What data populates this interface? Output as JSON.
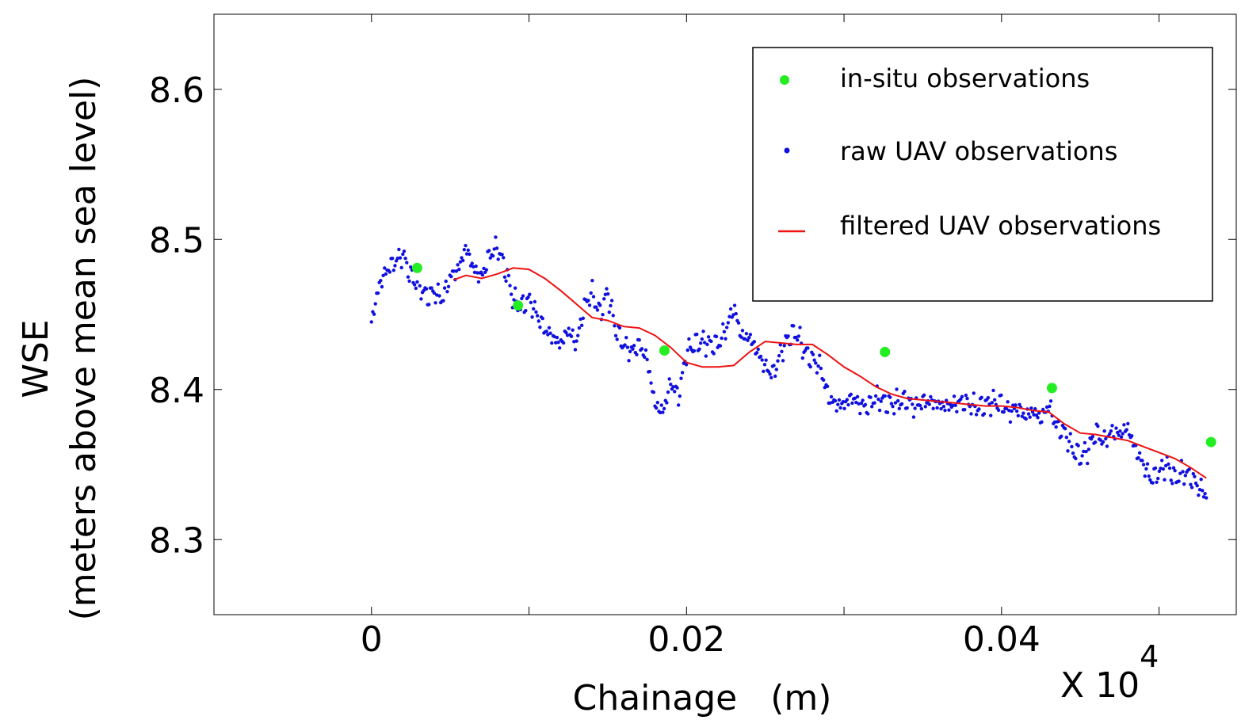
{
  "chart_data": {
    "type": "scatter",
    "title": "",
    "xlabel": "Chainage   (m)",
    "ylabel": "WSE",
    "ylabel_sub": "(meters above mean sea level)",
    "x_multiplier_label": "X 10",
    "x_multiplier_exponent": "4",
    "xlim": [
      -0.01,
      0.0549
    ],
    "ylim": [
      8.25,
      8.65
    ],
    "x_ticks": [
      0,
      0.01,
      0.02,
      0.03,
      0.04,
      0.05
    ],
    "x_tick_labels": [
      {
        "value": 0,
        "label": "0"
      },
      {
        "value": 0.02,
        "label": "0.02"
      },
      {
        "value": 0.04,
        "label": "0.04"
      }
    ],
    "y_ticks": [
      8.3,
      8.4,
      8.5,
      8.6
    ],
    "y_tick_labels": [
      {
        "value": 8.3,
        "label": "8.3"
      },
      {
        "value": 8.4,
        "label": "8.4"
      },
      {
        "value": 8.5,
        "label": "8.5"
      },
      {
        "value": 8.6,
        "label": "8.6"
      }
    ],
    "grid": false,
    "legend_position": "top-right",
    "series": [
      {
        "name": "in-situ observations",
        "kind": "points",
        "color": "#22ee22",
        "x": [
          0.0029,
          0.0093,
          0.0186,
          0.0326,
          0.0432,
          0.0533
        ],
        "y": [
          8.481,
          8.456,
          8.426,
          8.425,
          8.401,
          8.365
        ]
      },
      {
        "name": "raw UAV observations",
        "kind": "points",
        "color": "#1010e0",
        "anchors_x": [
          0,
          0.0005,
          0.001,
          0.0015,
          0.002,
          0.0025,
          0.003,
          0.0035,
          0.004,
          0.0045,
          0.005,
          0.0055,
          0.006,
          0.0065,
          0.007,
          0.0075,
          0.008,
          0.0085,
          0.009,
          0.0095,
          0.01,
          0.0105,
          0.011,
          0.0115,
          0.012,
          0.0125,
          0.013,
          0.0135,
          0.014,
          0.0145,
          0.015,
          0.0155,
          0.016,
          0.0165,
          0.017,
          0.0175,
          0.018,
          0.0185,
          0.019,
          0.0195,
          0.02,
          0.0205,
          0.021,
          0.0215,
          0.022,
          0.0225,
          0.023,
          0.0235,
          0.024,
          0.0245,
          0.025,
          0.0255,
          0.026,
          0.0265,
          0.027,
          0.0275,
          0.028,
          0.0285,
          0.029,
          0.0295,
          0.03,
          0.0305,
          0.031,
          0.0315,
          0.032,
          0.0325,
          0.033,
          0.0335,
          0.034,
          0.0345,
          0.035,
          0.0355,
          0.036,
          0.0365,
          0.037,
          0.0375,
          0.038,
          0.0385,
          0.039,
          0.0395,
          0.04,
          0.0405,
          0.041,
          0.0415,
          0.042,
          0.0425,
          0.043,
          0.0435,
          0.044,
          0.0445,
          0.045,
          0.0455,
          0.046,
          0.0465,
          0.047,
          0.0475,
          0.048,
          0.0485,
          0.049,
          0.0495,
          0.05,
          0.0505,
          0.051,
          0.0515,
          0.052,
          0.0525,
          0.053
        ],
        "anchors_y": [
          8.445,
          8.47,
          8.48,
          8.485,
          8.49,
          8.475,
          8.47,
          8.462,
          8.465,
          8.46,
          8.475,
          8.48,
          8.495,
          8.48,
          8.475,
          8.49,
          8.495,
          8.48,
          8.46,
          8.455,
          8.46,
          8.45,
          8.44,
          8.435,
          8.43,
          8.44,
          8.43,
          8.455,
          8.465,
          8.45,
          8.465,
          8.44,
          8.43,
          8.425,
          8.43,
          8.42,
          8.39,
          8.385,
          8.405,
          8.395,
          8.425,
          8.43,
          8.432,
          8.43,
          8.43,
          8.44,
          8.455,
          8.435,
          8.435,
          8.425,
          8.415,
          8.41,
          8.425,
          8.435,
          8.438,
          8.425,
          8.42,
          8.415,
          8.395,
          8.39,
          8.39,
          8.395,
          8.39,
          8.388,
          8.395,
          8.392,
          8.39,
          8.392,
          8.393,
          8.388,
          8.392,
          8.392,
          8.39,
          8.389,
          8.39,
          8.392,
          8.39,
          8.388,
          8.39,
          8.392,
          8.39,
          8.385,
          8.388,
          8.382,
          8.386,
          8.38,
          8.39,
          8.375,
          8.372,
          8.36,
          8.355,
          8.36,
          8.372,
          8.365,
          8.372,
          8.37,
          8.375,
          8.36,
          8.35,
          8.34,
          8.345,
          8.35,
          8.34,
          8.345,
          8.342,
          8.335,
          8.33
        ],
        "count": 640
      },
      {
        "name": "filtered UAV observations",
        "kind": "line",
        "color": "#ee1111",
        "x": [
          0.0052,
          0.006,
          0.007,
          0.008,
          0.009,
          0.01,
          0.011,
          0.012,
          0.013,
          0.014,
          0.015,
          0.016,
          0.017,
          0.018,
          0.019,
          0.02,
          0.021,
          0.022,
          0.023,
          0.024,
          0.025,
          0.026,
          0.027,
          0.028,
          0.029,
          0.03,
          0.031,
          0.032,
          0.033,
          0.034,
          0.035,
          0.036,
          0.037,
          0.038,
          0.039,
          0.04,
          0.041,
          0.042,
          0.043,
          0.044,
          0.045,
          0.046,
          0.047,
          0.048,
          0.049,
          0.05,
          0.051,
          0.052,
          0.053
        ],
        "y": [
          8.473,
          8.476,
          8.474,
          8.477,
          8.481,
          8.48,
          8.474,
          8.466,
          8.457,
          8.448,
          8.446,
          8.442,
          8.441,
          8.436,
          8.428,
          8.418,
          8.415,
          8.415,
          8.416,
          8.425,
          8.432,
          8.431,
          8.43,
          8.43,
          8.423,
          8.415,
          8.409,
          8.402,
          8.397,
          8.394,
          8.393,
          8.392,
          8.391,
          8.39,
          8.389,
          8.389,
          8.388,
          8.386,
          8.385,
          8.377,
          8.371,
          8.37,
          8.368,
          8.366,
          8.362,
          8.358,
          8.354,
          8.348,
          8.341
        ]
      }
    ]
  }
}
